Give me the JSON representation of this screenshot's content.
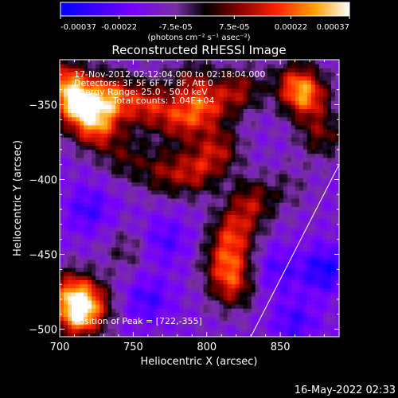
{
  "chart_data": {
    "type": "heatmap",
    "title": "Reconstructed RHESSI Image",
    "xlabel": "Heliocentric X (arcsec)",
    "ylabel": "Heliocentric Y (arcsec)",
    "xlim": [
      700,
      890
    ],
    "ylim": [
      -505,
      -320
    ],
    "x_ticks": [
      700,
      750,
      800,
      850
    ],
    "y_ticks": [
      -500,
      -450,
      -400,
      -350
    ],
    "colorbar": {
      "range": [
        -0.00037,
        0.00037
      ],
      "tick_values": [
        -0.00037,
        -0.00022,
        -7.5e-05,
        7.5e-05,
        0.00022,
        0.00037
      ],
      "tick_labels": [
        "-0.00037",
        "-0.00022",
        "-7.5e-05",
        "7.5e-05",
        "0.00022",
        "0.00037"
      ],
      "unit_label": "(photons cm⁻² s⁻¹ asec⁻²)"
    },
    "annotations": [
      "17-Nov-2012 02:12:04.000 to 02:18:04.000",
      "Detectors: 3F 5F 6F 7F 8F, Att 0",
      "Energy Range: 25.0 - 50.0 keV",
      "Clean     Total counts: 1.04E+04",
      "Position of Peak = [722,-355]"
    ],
    "peak": {
      "x": 722,
      "y": -355
    },
    "emission_blobs": [
      {
        "x": 712,
        "y": -350,
        "w": 0.00037
      },
      {
        "x": 735,
        "y": -345,
        "w": 0.00034
      },
      {
        "x": 705,
        "y": -335,
        "w": 0.0003
      },
      {
        "x": 725,
        "y": -365,
        "w": 0.0003
      },
      {
        "x": 760,
        "y": -350,
        "w": 0.00026
      },
      {
        "x": 782,
        "y": -360,
        "w": 0.00024
      },
      {
        "x": 800,
        "y": -352,
        "w": 0.00023
      },
      {
        "x": 822,
        "y": -340,
        "w": 0.00022
      },
      {
        "x": 790,
        "y": -335,
        "w": 0.00018
      },
      {
        "x": 808,
        "y": -380,
        "w": 0.00022
      },
      {
        "x": 792,
        "y": -395,
        "w": 0.00022
      },
      {
        "x": 770,
        "y": -395,
        "w": 0.00018
      },
      {
        "x": 745,
        "y": -385,
        "w": 0.00015
      },
      {
        "x": 868,
        "y": -345,
        "w": 0.00028
      },
      {
        "x": 860,
        "y": -335,
        "w": 0.00022
      },
      {
        "x": 878,
        "y": -370,
        "w": 0.00018
      },
      {
        "x": 830,
        "y": -415,
        "w": 0.00022
      },
      {
        "x": 818,
        "y": -435,
        "w": 0.00025
      },
      {
        "x": 814,
        "y": -455,
        "w": 0.00026
      },
      {
        "x": 817,
        "y": -472,
        "w": 0.00022
      },
      {
        "x": 708,
        "y": -475,
        "w": 0.00028
      },
      {
        "x": 712,
        "y": -492,
        "w": 0.00034
      },
      {
        "x": 722,
        "y": -482,
        "w": 0.0002
      },
      {
        "x": 745,
        "y": -447,
        "w": 0.0001
      },
      {
        "x": 855,
        "y": -405,
        "w": 8e-05
      }
    ],
    "negative_blobs": [
      {
        "x": 720,
        "y": -420,
        "w": 0.00014
      },
      {
        "x": 772,
        "y": -440,
        "w": 0.00012
      },
      {
        "x": 880,
        "y": -460,
        "w": 0.0002
      },
      {
        "x": 848,
        "y": -460,
        "w": 0.00012
      },
      {
        "x": 760,
        "y": -480,
        "w": 0.00014
      },
      {
        "x": 860,
        "y": -495,
        "w": 0.00014
      }
    ],
    "limb_line": [
      {
        "x": 830,
        "y": -505
      },
      {
        "x": 890,
        "y": -390
      }
    ]
  },
  "footer": {
    "date": "16-May-2022 02:33"
  }
}
